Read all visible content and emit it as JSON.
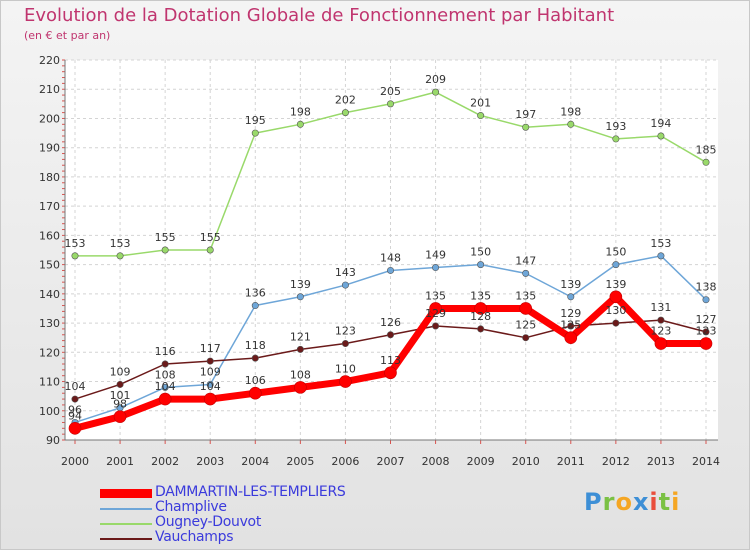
{
  "title": "Evolution de la Dotation Globale de Fonctionnement par Habitant",
  "subtitle": "(en € et par an)",
  "logo": {
    "text": "Proxiti"
  },
  "chart_data": {
    "type": "line",
    "x": [
      "2000",
      "2001",
      "2002",
      "2003",
      "2004",
      "2005",
      "2006",
      "2007",
      "2008",
      "2009",
      "2010",
      "2011",
      "2012",
      "2013",
      "2014"
    ],
    "ylim": [
      90,
      220
    ],
    "yticks": [
      90,
      100,
      110,
      120,
      130,
      140,
      150,
      160,
      170,
      180,
      190,
      200,
      210,
      220
    ],
    "grid": true,
    "legend_position": "bottom-left",
    "series": [
      {
        "name": "DAMMARTIN-LES-TEMPLIERS",
        "color": "#ff0000",
        "values": [
          94,
          98,
          104,
          104,
          106,
          108,
          110,
          113,
          135,
          135,
          135,
          125,
          139,
          123,
          123
        ]
      },
      {
        "name": "Champlive",
        "color": "#6ea6d8",
        "values": [
          96,
          101,
          108,
          109,
          136,
          139,
          143,
          148,
          149,
          150,
          147,
          139,
          150,
          153,
          138
        ]
      },
      {
        "name": "Ougney-Douvot",
        "color": "#99d96a",
        "values": [
          153,
          153,
          155,
          155,
          195,
          198,
          202,
          205,
          209,
          201,
          197,
          198,
          193,
          194,
          185
        ]
      },
      {
        "name": "Vauchamps",
        "color": "#6b1a1a",
        "values": [
          104,
          109,
          116,
          117,
          118,
          121,
          123,
          126,
          129,
          128,
          125,
          129,
          130,
          131,
          127
        ]
      }
    ]
  }
}
